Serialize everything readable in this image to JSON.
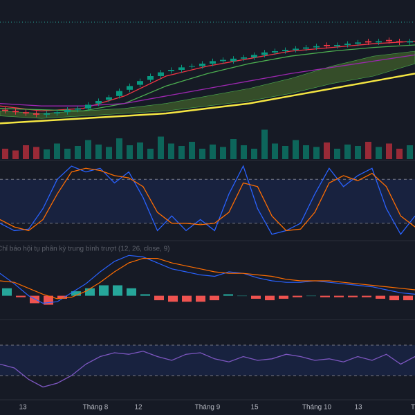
{
  "chart_data": [
    {
      "type": "candlestick",
      "open": [
        23,
        22,
        21,
        20,
        19,
        20,
        21,
        23,
        24,
        28,
        31,
        34,
        39,
        43,
        47,
        50,
        54,
        55,
        58,
        58,
        60,
        62,
        62,
        64,
        65,
        67,
        69,
        70,
        71,
        72,
        73,
        75,
        74,
        75,
        76,
        78,
        77,
        79,
        78,
        77
      ],
      "high": [
        25,
        24,
        23,
        22,
        22,
        23,
        25,
        26,
        29,
        32,
        35,
        40,
        44,
        48,
        52,
        55,
        57,
        59,
        60,
        62,
        64,
        65,
        66,
        67,
        69,
        71,
        72,
        73,
        74,
        75,
        76,
        77,
        77,
        78,
        79,
        80,
        80,
        81,
        80,
        80
      ],
      "low": [
        20,
        19,
        18,
        17,
        17,
        18,
        19,
        21,
        22,
        26,
        29,
        32,
        37,
        41,
        45,
        48,
        52,
        53,
        56,
        56,
        58,
        60,
        60,
        62,
        63,
        65,
        67,
        68,
        69,
        70,
        71,
        72,
        72,
        73,
        74,
        75,
        75,
        76,
        75,
        75
      ],
      "close": [
        22,
        21,
        20,
        19,
        20,
        21,
        23,
        24,
        27,
        30,
        33,
        38,
        42,
        46,
        50,
        53,
        55,
        57,
        58,
        60,
        62,
        63,
        64,
        65,
        67,
        69,
        70,
        71,
        72,
        73,
        74,
        74,
        75,
        76,
        77,
        77,
        78,
        78,
        77,
        78
      ],
      "up_color": "#089981",
      "down_color": "#f23645",
      "ylim": [
        0,
        100
      ],
      "overlays": [
        {
          "color": "#f23645",
          "values": [
            26,
            22,
            24,
            34,
            50,
            58,
            64,
            70,
            73,
            76,
            78
          ]
        },
        {
          "color": "#4caf50",
          "values": [
            24,
            23,
            22,
            28,
            42,
            52,
            60,
            66,
            70,
            73,
            75
          ]
        },
        {
          "color": "#9c27b0",
          "values": [
            28,
            26,
            26,
            28,
            34,
            40,
            46,
            52,
            57,
            62,
            67
          ]
        },
        {
          "color": "#f5e642",
          "values": [
            12,
            14,
            16,
            18,
            20,
            24,
            28,
            34,
            40,
            46,
            52
          ]
        }
      ],
      "cloud": {
        "color": "#3d5a2a",
        "upper": [
          22,
          20,
          22,
          24,
          28,
          34,
          40,
          48,
          58,
          66,
          70
        ],
        "lower": [
          18,
          16,
          18,
          20,
          22,
          26,
          30,
          36,
          44,
          50,
          60
        ]
      }
    },
    {
      "type": "volume",
      "ylim": [
        0,
        100
      ],
      "values": [
        30,
        25,
        40,
        35,
        28,
        45,
        30,
        38,
        55,
        42,
        35,
        60,
        40,
        48,
        30,
        65,
        45,
        38,
        50,
        30,
        42,
        35,
        58,
        40,
        30,
        85,
        45,
        38,
        55,
        40,
        35,
        48,
        30,
        42,
        38,
        50,
        35,
        45,
        30,
        40
      ]
    },
    {
      "type": "line",
      "ylim": [
        0,
        100
      ],
      "levels": [
        20,
        80
      ],
      "series": [
        {
          "color": "#2962ff",
          "values": [
            20,
            10,
            12,
            40,
            80,
            98,
            90,
            95,
            75,
            90,
            55,
            10,
            30,
            10,
            25,
            10,
            60,
            98,
            40,
            5,
            10,
            20,
            60,
            95,
            70,
            85,
            95,
            40,
            5,
            30
          ]
        },
        {
          "color": "#ff6d00",
          "values": [
            25,
            15,
            10,
            25,
            60,
            90,
            95,
            92,
            85,
            82,
            70,
            35,
            20,
            20,
            18,
            20,
            35,
            75,
            70,
            30,
            10,
            12,
            35,
            75,
            85,
            78,
            88,
            70,
            30,
            15
          ]
        }
      ]
    },
    {
      "type": "macd",
      "title": "Chỉ báo hội tụ phân kỳ trung bình trượt (12, 26, close, 9)",
      "ylim": [
        -1.5,
        3.5
      ],
      "series": [
        {
          "color": "#2962ff",
          "values": [
            1.5,
            0.8,
            0,
            -0.5,
            -0.4,
            0.2,
            0.8,
            1.6,
            2.3,
            2.7,
            2.6,
            2.2,
            1.8,
            1.6,
            1.4,
            1.3,
            1.6,
            1.5,
            1.2,
            1.0,
            0.9,
            0.9,
            1.0,
            0.9,
            0.8,
            0.7,
            0.6,
            0.4,
            0.2,
            0.1
          ]
        },
        {
          "color": "#ff6d00",
          "values": [
            1.0,
            0.9,
            0.5,
            0.1,
            -0.2,
            -0.1,
            0.3,
            0.9,
            1.6,
            2.2,
            2.5,
            2.5,
            2.2,
            2.0,
            1.8,
            1.6,
            1.5,
            1.5,
            1.4,
            1.3,
            1.1,
            1.0,
            1.0,
            1.0,
            0.9,
            0.8,
            0.7,
            0.6,
            0.5,
            0.4
          ]
        }
      ],
      "histogram": [
        0.5,
        -0.1,
        -0.5,
        -0.6,
        -0.2,
        0.3,
        0.5,
        0.7,
        0.7,
        0.5,
        0.1,
        -0.3,
        -0.4,
        -0.4,
        -0.4,
        -0.3,
        0.1,
        0,
        -0.2,
        -0.3,
        -0.2,
        -0.1,
        0,
        -0.1,
        -0.1,
        -0.1,
        -0.1,
        -0.2,
        -0.3,
        -0.3
      ],
      "up_color": "#26a69a",
      "down_color": "#ef5350"
    },
    {
      "type": "line",
      "ylim": [
        0,
        100
      ],
      "levels": [
        30,
        70
      ],
      "series": [
        {
          "color": "#7e57c2",
          "values": [
            45,
            40,
            25,
            15,
            20,
            30,
            45,
            55,
            60,
            58,
            62,
            55,
            50,
            58,
            60,
            52,
            48,
            55,
            50,
            52,
            58,
            55,
            50,
            52,
            48,
            55,
            50,
            58,
            45,
            55
          ]
        }
      ]
    },
    {
      "type": "axis",
      "labels": [
        "13",
        "Tháng 8",
        "12",
        "Tháng 9",
        "15",
        "Tháng 10",
        "13",
        "T"
      ]
    }
  ]
}
